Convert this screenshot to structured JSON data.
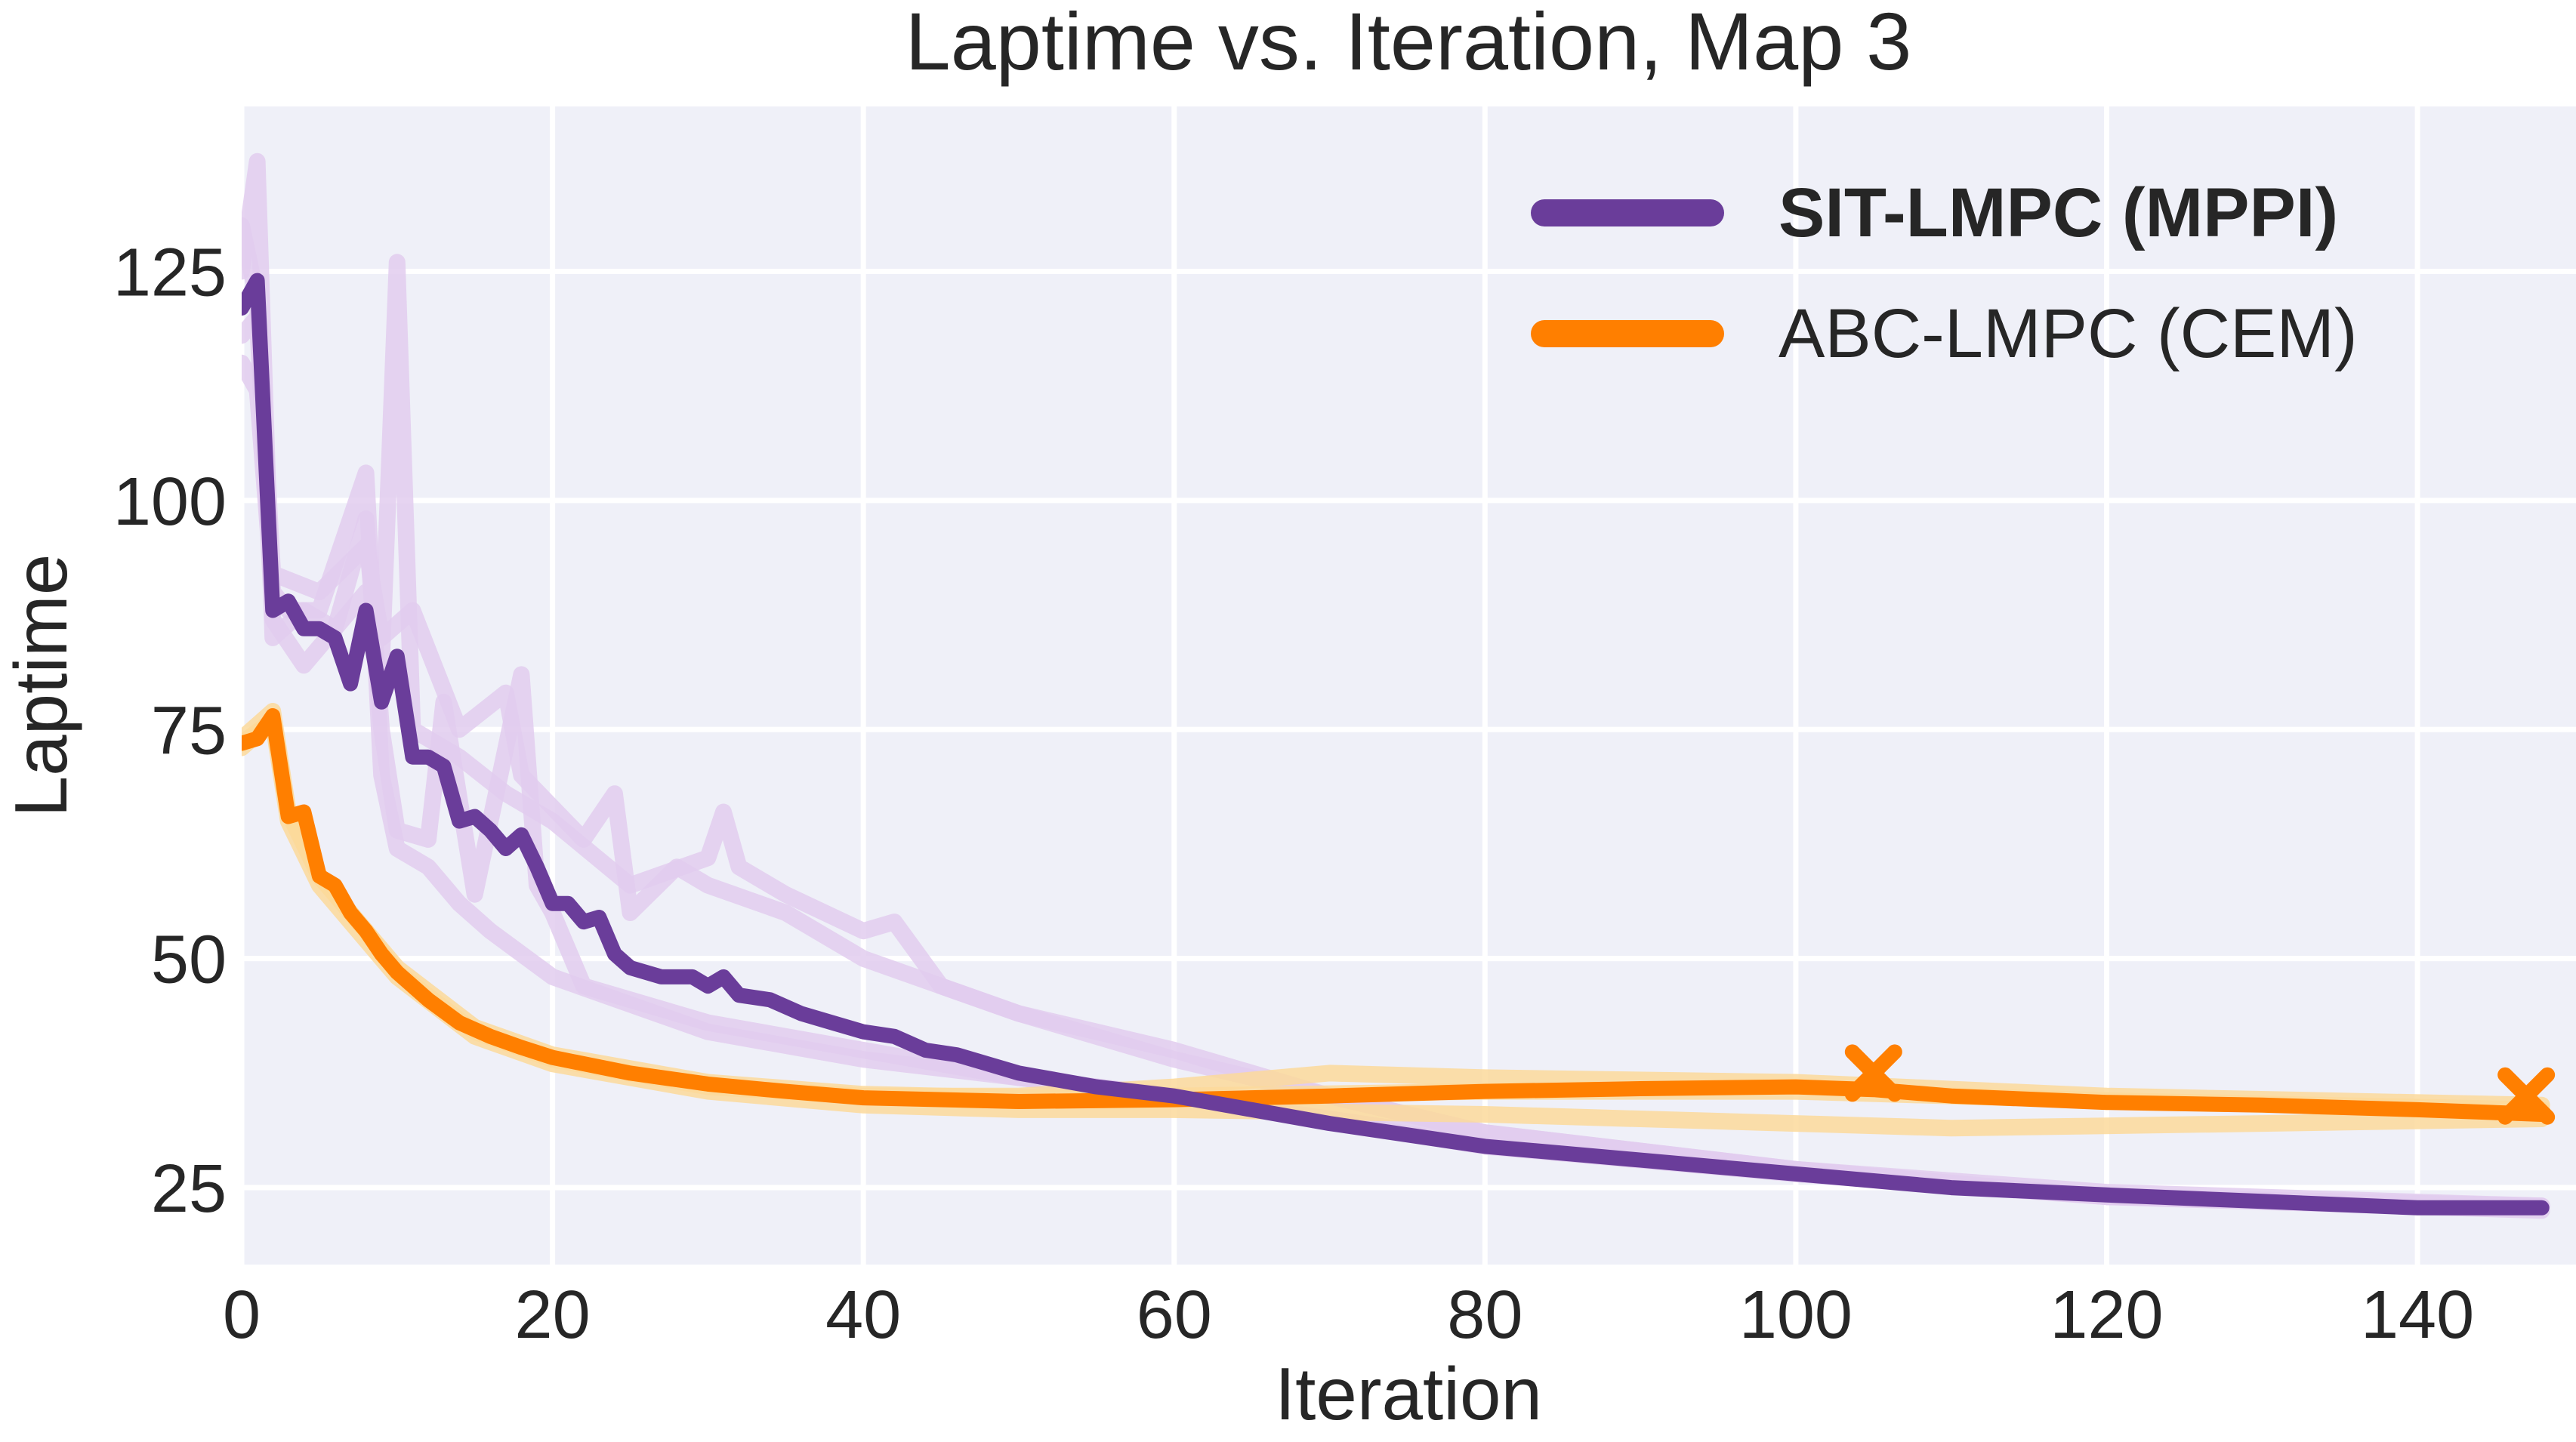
{
  "chart_data": {
    "type": "line",
    "title": "Laptime vs. Iteration, Map 3",
    "xlabel": "Iteration",
    "ylabel": "Laptime",
    "xlim": [
      0,
      150.2
    ],
    "ylim": [
      16.6,
      143
    ],
    "xticks": [
      0,
      20,
      40,
      60,
      80,
      100,
      120,
      140
    ],
    "yticks": [
      25,
      50,
      75,
      100,
      125
    ],
    "grid": true,
    "legend_position": "top-right",
    "colors": {
      "background": "#eff0f8",
      "grid": "#ffffff",
      "sit": "#6a3d9a",
      "abc": "#ff7f00",
      "sit_faint": "#e2cdee",
      "abc_faint": "#fcd99b"
    },
    "series": [
      {
        "name": "SIT-LMPC (MPPI)",
        "bold_legend": true,
        "color": "#6a3d9a",
        "x": [
          0,
          1,
          2,
          3,
          4,
          5,
          6,
          7,
          8,
          9,
          10,
          11,
          12,
          13,
          14,
          15,
          16,
          17,
          18,
          19,
          20,
          21,
          22,
          23,
          24,
          25,
          27,
          29,
          30,
          31,
          32,
          34,
          36,
          38,
          40,
          42,
          44,
          46,
          48,
          50,
          55,
          60,
          65,
          70,
          80,
          90,
          100,
          110,
          120,
          130,
          140,
          148
        ],
        "y": [
          121,
          124,
          88,
          89,
          86,
          86,
          85,
          80,
          88,
          78,
          83,
          72,
          72,
          71,
          65,
          65.5,
          64,
          62,
          63.5,
          60,
          56,
          56,
          54,
          54.5,
          50.5,
          49,
          48,
          48,
          47,
          48,
          46,
          45.5,
          44,
          43,
          42,
          41.5,
          40,
          39.5,
          38.5,
          37.5,
          36,
          35,
          33.5,
          32,
          29.5,
          28,
          26.5,
          25,
          24.2,
          23.5,
          22.8,
          22.8
        ]
      },
      {
        "name": "ABC-LMPC (CEM)",
        "color": "#ff7f00",
        "x": [
          0,
          1,
          2,
          3,
          4,
          5,
          6,
          7,
          8,
          9,
          10,
          12,
          14,
          16,
          18,
          20,
          25,
          30,
          35,
          40,
          50,
          60,
          70,
          80,
          90,
          100,
          105,
          110,
          120,
          130,
          140,
          148
        ],
        "y": [
          73.5,
          74,
          76.5,
          65.5,
          66,
          59,
          58,
          55,
          53,
          50.5,
          48.5,
          45.5,
          43,
          41.5,
          40.3,
          39.2,
          37.5,
          36.3,
          35.5,
          34.8,
          34.4,
          34.6,
          35,
          35.5,
          35.8,
          36,
          35.7,
          35,
          34.3,
          34,
          33.5,
          33
        ],
        "markers": [
          {
            "x": 105,
            "y": 37.5,
            "symbol": "x"
          },
          {
            "x": 147,
            "y": 35,
            "symbol": "x"
          }
        ]
      }
    ],
    "faint_runs": [
      {
        "group": "SIT-LMPC (MPPI)",
        "x": [
          0,
          1,
          2,
          4,
          6,
          8,
          9,
          10,
          11,
          14,
          17,
          20,
          25,
          30,
          31,
          32,
          35,
          40,
          42,
          45,
          50,
          55,
          60,
          70,
          80,
          100,
          120,
          148
        ],
        "y": [
          125,
          137,
          85,
          88,
          86,
          90,
          82,
          126,
          75,
          72,
          68,
          65,
          58,
          61,
          66,
          60,
          57,
          53,
          54,
          47,
          44,
          42,
          40,
          35,
          31,
          27,
          24,
          23
        ]
      },
      {
        "group": "SIT-LMPC (MPPI)",
        "x": [
          0,
          1,
          2,
          3,
          5,
          8,
          9,
          10,
          12,
          14,
          16,
          20,
          30,
          40,
          50,
          60,
          80,
          100,
          120,
          148
        ],
        "y": [
          115,
          112,
          90,
          88,
          88,
          103,
          70,
          62,
          60,
          56,
          53,
          48,
          42,
          39,
          37,
          35,
          30,
          27,
          24.5,
          23
        ]
      },
      {
        "group": "SIT-LMPC (MPPI)",
        "x": [
          0,
          1,
          2,
          4,
          6,
          8,
          9,
          10,
          12,
          13,
          15,
          18,
          19,
          20,
          22,
          30,
          40,
          50,
          60,
          80,
          100,
          120,
          148
        ],
        "y": [
          118,
          120,
          87,
          82,
          86,
          98,
          75,
          64,
          63,
          78,
          57,
          81,
          58,
          55,
          47,
          43,
          40,
          37,
          35,
          29.5,
          26.5,
          24,
          22.5
        ]
      },
      {
        "group": "SIT-LMPC (MPPI)",
        "x": [
          0,
          1,
          2,
          5,
          8,
          9,
          11,
          14,
          17,
          18,
          22,
          24,
          25,
          28,
          30,
          35,
          40,
          50,
          60,
          80,
          100,
          120,
          148
        ],
        "y": [
          130,
          122,
          92,
          90,
          95,
          85,
          88,
          75,
          79,
          70,
          63,
          68,
          55,
          60,
          58,
          55,
          50,
          44,
          39,
          31,
          27,
          24,
          23
        ]
      },
      {
        "group": "ABC-LMPC (CEM)",
        "x": [
          0,
          2,
          3,
          5,
          8,
          10,
          15,
          20,
          30,
          40,
          50,
          60,
          70,
          80,
          100,
          120,
          148
        ],
        "y": [
          74,
          77,
          66,
          59,
          53,
          48.5,
          42,
          39,
          36,
          35,
          35,
          36,
          37.5,
          37,
          36.5,
          35,
          34
        ]
      },
      {
        "group": "ABC-LMPC (CEM)",
        "x": [
          0,
          2,
          3,
          5,
          8,
          10,
          15,
          20,
          30,
          40,
          50,
          60,
          80,
          100,
          110,
          130,
          148
        ],
        "y": [
          73,
          76,
          65,
          58,
          52,
          48,
          41.5,
          38.5,
          35.5,
          34,
          33.5,
          33.5,
          33,
          32,
          31.5,
          32,
          32.5
        ]
      },
      {
        "group": "ABC-LMPC (CEM)",
        "x": [
          0,
          2,
          3,
          5,
          8,
          10,
          15,
          20,
          30,
          40,
          50,
          60,
          80,
          100,
          120,
          148
        ],
        "y": [
          73.5,
          76,
          66,
          59,
          53,
          49,
          42.5,
          39.5,
          36.5,
          35.2,
          34.8,
          35,
          35.5,
          35.5,
          34.5,
          33.5
        ]
      }
    ]
  }
}
